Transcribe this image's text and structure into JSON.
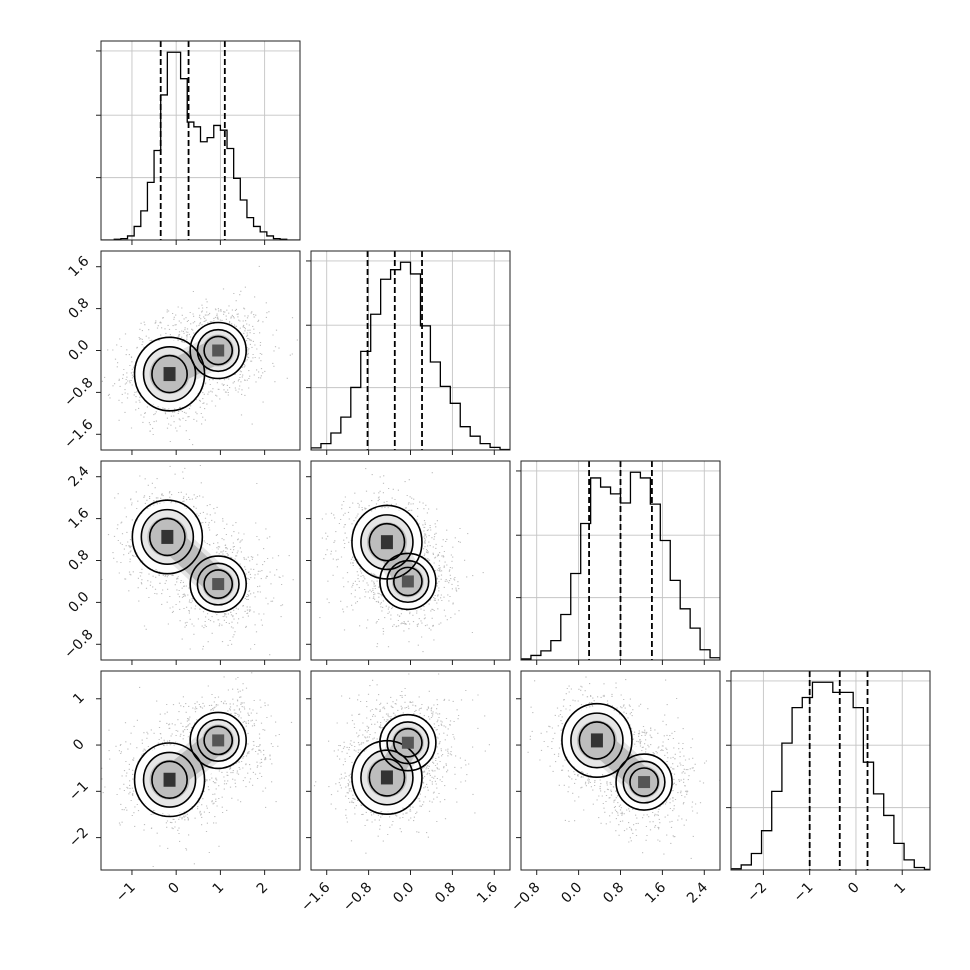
{
  "chart_data": {
    "type": "corner",
    "title": "",
    "n_params": 4,
    "axis_labels": [
      "",
      "",
      "",
      ""
    ],
    "ranges": [
      [
        -1.7,
        2.8
      ],
      [
        -1.9,
        1.9
      ],
      [
        -1.1,
        2.7
      ],
      [
        -2.7,
        1.6
      ]
    ],
    "ticks": [
      [
        "−1",
        "0",
        "1",
        "2"
      ],
      [
        "−1.6",
        "−0.8",
        "0.0",
        "0.8",
        "1.6"
      ],
      [
        "−0.8",
        "0.0",
        "0.8",
        "1.6",
        "2.4"
      ],
      [
        "−2",
        "−1",
        "0",
        "1"
      ]
    ],
    "tick_values": [
      [
        -1,
        0,
        1,
        2
      ],
      [
        -1.6,
        -0.8,
        0.0,
        0.8,
        1.6
      ],
      [
        -0.8,
        0.0,
        0.8,
        1.6,
        2.4
      ],
      [
        -2,
        -1,
        0,
        1
      ]
    ],
    "quantiles": [
      [
        -0.35,
        0.28,
        1.1
      ],
      [
        -0.82,
        -0.3,
        0.22
      ],
      [
        0.2,
        0.8,
        1.4
      ],
      [
        -1.0,
        -0.35,
        0.25
      ]
    ],
    "histograms": [
      {
        "param": 0,
        "bins": [
          -1.7,
          -1.55,
          -1.4,
          -1.25,
          -1.1,
          -0.95,
          -0.8,
          -0.65,
          -0.5,
          -0.35,
          -0.2,
          -0.05,
          0.1,
          0.25,
          0.4,
          0.55,
          0.7,
          0.85,
          1.0,
          1.15,
          1.3,
          1.45,
          1.6,
          1.75,
          1.9,
          2.05,
          2.2,
          2.35,
          2.5,
          2.65,
          2.8
        ],
        "counts": [
          0,
          0,
          10,
          20,
          60,
          200,
          430,
          850,
          1320,
          2140,
          2770,
          2770,
          2380,
          1740,
          1670,
          1450,
          1510,
          1690,
          1620,
          1350,
          910,
          590,
          330,
          200,
          120,
          60,
          20,
          10,
          0,
          0
        ]
      },
      {
        "param": 1,
        "bins": [
          -1.9,
          -1.71,
          -1.52,
          -1.33,
          -1.14,
          -0.95,
          -0.76,
          -0.57,
          -0.38,
          -0.19,
          0.0,
          0.19,
          0.38,
          0.57,
          0.76,
          0.95,
          1.14,
          1.33,
          1.52,
          1.71,
          1.9
        ],
        "counts": [
          20,
          60,
          160,
          310,
          590,
          930,
          1280,
          1610,
          1700,
          1770,
          1660,
          1170,
          830,
          600,
          440,
          220,
          130,
          60,
          25,
          5
        ]
      },
      {
        "param": 2,
        "bins": [
          -1.1,
          -0.91,
          -0.72,
          -0.53,
          -0.34,
          -0.15,
          0.04,
          0.23,
          0.42,
          0.61,
          0.8,
          0.99,
          1.18,
          1.37,
          1.56,
          1.75,
          1.94,
          2.13,
          2.32,
          2.51,
          2.7
        ],
        "counts": [
          10,
          40,
          80,
          170,
          400,
          760,
          1200,
          1600,
          1520,
          1460,
          1380,
          1650,
          1600,
          1370,
          1050,
          700,
          450,
          280,
          90,
          20
        ]
      },
      {
        "param": 3,
        "bins": [
          -2.7,
          -2.48,
          -2.26,
          -2.04,
          -1.82,
          -1.6,
          -1.38,
          -1.16,
          -0.94,
          -0.72,
          -0.5,
          -0.28,
          -0.06,
          0.16,
          0.38,
          0.6,
          0.82,
          1.04,
          1.26,
          1.48,
          1.6
        ],
        "counts": [
          10,
          40,
          130,
          310,
          620,
          1000,
          1280,
          1360,
          1480,
          1480,
          1400,
          1400,
          1280,
          850,
          600,
          430,
          210,
          80,
          20,
          5
        ]
      }
    ],
    "modes_2d": {
      "note_components": "two Gaussian components per pair",
      "pairs": [
        {
          "x": 0,
          "y": 1,
          "centers": [
            [
              -0.15,
              -0.45
            ],
            [
              0.95,
              0.0
            ]
          ]
        },
        {
          "x": 0,
          "y": 2,
          "centers": [
            [
              -0.2,
              1.25
            ],
            [
              0.95,
              0.35
            ]
          ]
        },
        {
          "x": 1,
          "y": 2,
          "centers": [
            [
              -0.45,
              1.15
            ],
            [
              -0.05,
              0.4
            ]
          ]
        },
        {
          "x": 0,
          "y": 3,
          "centers": [
            [
              -0.15,
              -0.75
            ],
            [
              0.95,
              0.1
            ]
          ]
        },
        {
          "x": 1,
          "y": 3,
          "centers": [
            [
              -0.45,
              -0.7
            ],
            [
              -0.05,
              0.05
            ]
          ]
        },
        {
          "x": 2,
          "y": 3,
          "centers": [
            [
              0.35,
              0.1
            ],
            [
              1.25,
              -0.8
            ]
          ]
        }
      ]
    },
    "grid": true,
    "colors": {
      "contour": "#000000",
      "points": "#8a8a8a",
      "density": "#555555"
    }
  }
}
